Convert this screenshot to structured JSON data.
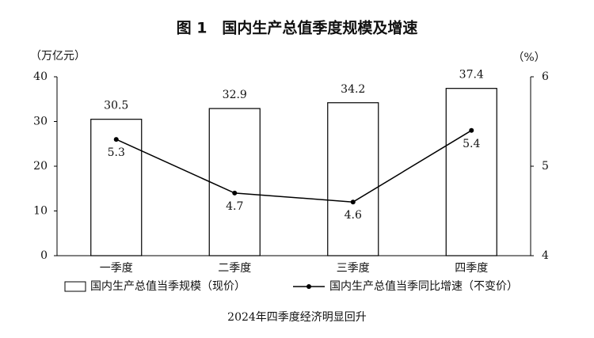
{
  "chart_data": {
    "type": "combo",
    "title": "图 1　国内生产总值季度规模及增速",
    "y_label": "（万亿元）",
    "y2_label": "（%）",
    "caption": "2024年四季度经济明显回升",
    "categories": [
      "一季度",
      "二季度",
      "三季度",
      "四季度"
    ],
    "series": [
      {
        "name": "国内生产总值当季规模（现价）",
        "type": "bar",
        "color": "#ffffff",
        "values": [
          30.5,
          32.9,
          34.2,
          37.4
        ]
      },
      {
        "name": "国内生产总值当季同比增速（不变价）",
        "type": "line",
        "axis": "y2",
        "color": "#000000",
        "values": [
          5.3,
          4.7,
          4.6,
          5.4
        ]
      }
    ],
    "ylim": [
      0,
      40
    ],
    "yticks": [
      0,
      10,
      20,
      30,
      40
    ],
    "y2lim": [
      4,
      6
    ],
    "y2ticks": [
      4,
      5,
      6
    ]
  }
}
